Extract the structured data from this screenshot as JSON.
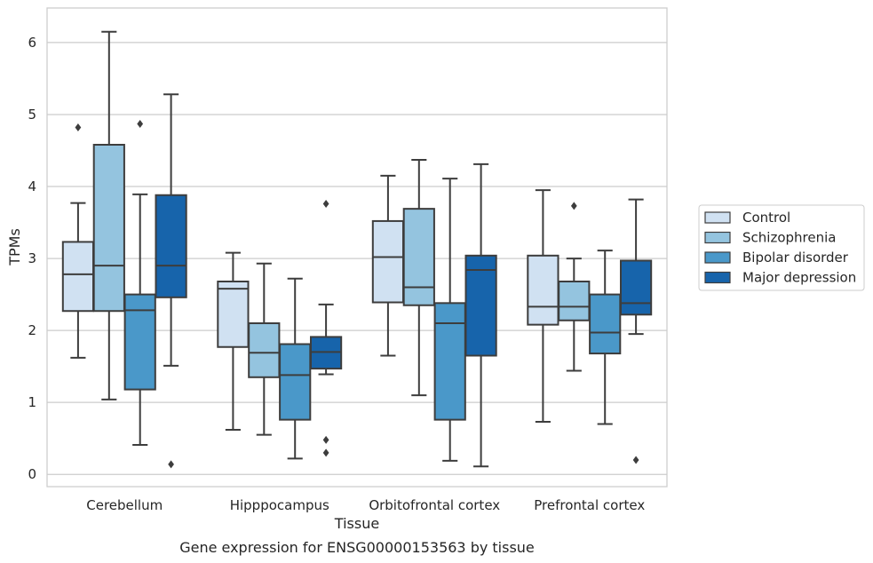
{
  "chart_data": {
    "type": "box",
    "title": "",
    "caption": "Gene expression for ENSG00000153563 by tissue",
    "xlabel": "Tissue",
    "ylabel": "TPMs",
    "ylim": [
      -0.17,
      6.48
    ],
    "yticks": [
      0,
      1,
      2,
      3,
      4,
      5,
      6
    ],
    "grid": "horizontal",
    "legend_position": "right",
    "categories": [
      "Cerebellum",
      "Hipppocampus",
      "Orbitofrontal cortex",
      "Prefrontal cortex"
    ],
    "series": [
      {
        "name": "Control",
        "color": "#d0e1f2",
        "boxes": [
          {
            "whisker_low": 1.62,
            "q1": 2.27,
            "median": 2.78,
            "q3": 3.23,
            "whisker_high": 3.77,
            "outliers": [
              4.82
            ]
          },
          {
            "whisker_low": 0.62,
            "q1": 1.77,
            "median": 2.58,
            "q3": 2.68,
            "whisker_high": 3.08,
            "outliers": []
          },
          {
            "whisker_low": 1.65,
            "q1": 2.39,
            "median": 3.02,
            "q3": 3.52,
            "whisker_high": 4.15,
            "outliers": []
          },
          {
            "whisker_low": 0.73,
            "q1": 2.08,
            "median": 2.33,
            "q3": 3.04,
            "whisker_high": 3.95,
            "outliers": []
          }
        ]
      },
      {
        "name": "Schizophrenia",
        "color": "#94c4df",
        "boxes": [
          {
            "whisker_low": 1.04,
            "q1": 2.27,
            "median": 2.9,
            "q3": 4.58,
            "whisker_high": 6.15,
            "outliers": []
          },
          {
            "whisker_low": 0.55,
            "q1": 1.35,
            "median": 1.69,
            "q3": 2.1,
            "whisker_high": 2.93,
            "outliers": []
          },
          {
            "whisker_low": 1.1,
            "q1": 2.35,
            "median": 2.6,
            "q3": 3.69,
            "whisker_high": 4.37,
            "outliers": []
          },
          {
            "whisker_low": 1.44,
            "q1": 2.14,
            "median": 2.33,
            "q3": 2.68,
            "whisker_high": 3.0,
            "outliers": [
              3.73
            ]
          }
        ]
      },
      {
        "name": "Bipolar disorder",
        "color": "#4a98c9",
        "boxes": [
          {
            "whisker_low": 0.41,
            "q1": 1.18,
            "median": 2.28,
            "q3": 2.5,
            "whisker_high": 3.89,
            "outliers": [
              4.87
            ]
          },
          {
            "whisker_low": 0.22,
            "q1": 0.76,
            "median": 1.38,
            "q3": 1.81,
            "whisker_high": 2.72,
            "outliers": []
          },
          {
            "whisker_low": 0.19,
            "q1": 0.76,
            "median": 2.1,
            "q3": 2.38,
            "whisker_high": 4.11,
            "outliers": []
          },
          {
            "whisker_low": 0.7,
            "q1": 1.68,
            "median": 1.97,
            "q3": 2.5,
            "whisker_high": 3.11,
            "outliers": []
          }
        ]
      },
      {
        "name": "Major depression",
        "color": "#1764ab",
        "boxes": [
          {
            "whisker_low": 1.51,
            "q1": 2.46,
            "median": 2.9,
            "q3": 3.88,
            "whisker_high": 5.28,
            "outliers": [
              0.14
            ]
          },
          {
            "whisker_low": 1.39,
            "q1": 1.47,
            "median": 1.7,
            "q3": 1.91,
            "whisker_high": 2.36,
            "outliers": [
              3.76,
              0.48,
              0.3
            ]
          },
          {
            "whisker_low": 0.11,
            "q1": 1.65,
            "median": 2.84,
            "q3": 3.04,
            "whisker_high": 4.31,
            "outliers": []
          },
          {
            "whisker_low": 1.95,
            "q1": 2.22,
            "median": 2.38,
            "q3": 2.97,
            "whisker_high": 3.82,
            "outliers": [
              0.2
            ]
          }
        ]
      }
    ]
  }
}
